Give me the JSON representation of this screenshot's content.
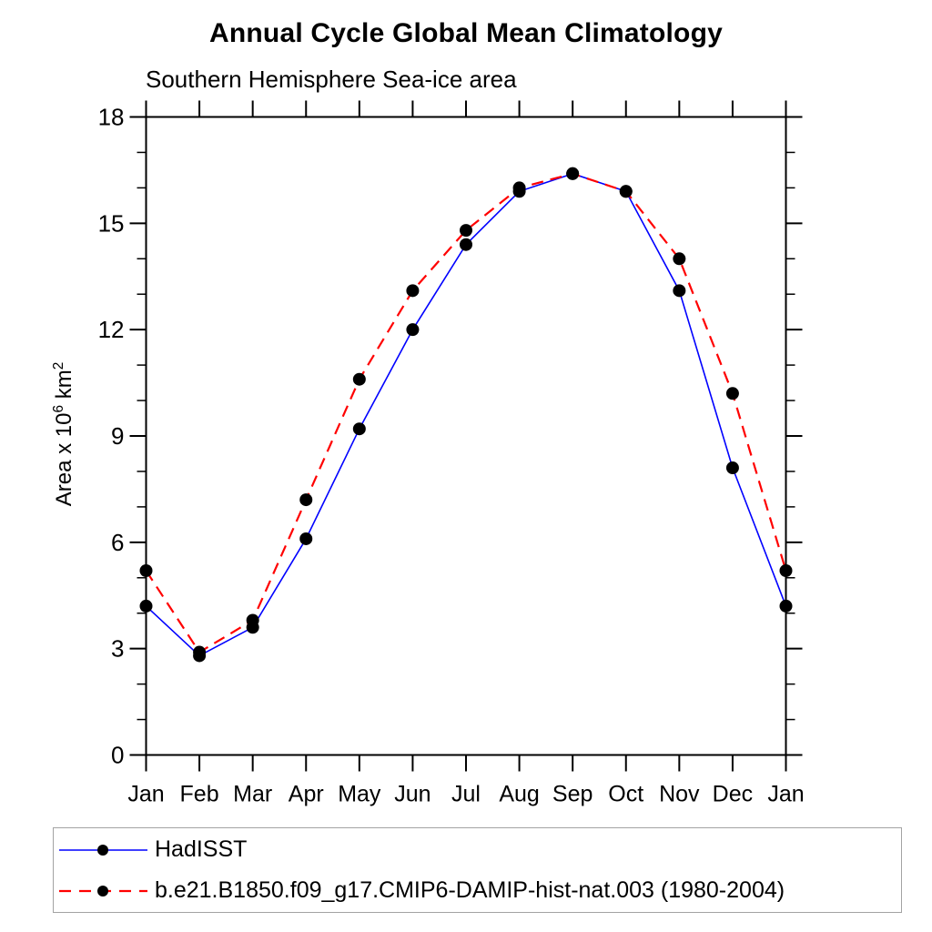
{
  "title": "Annual Cycle Global Mean Climatology",
  "subtitle": "Southern Hemisphere Sea-ice area",
  "y_axis": {
    "label": "Area x 10⁶ km²",
    "label_parts": [
      "Area x 10",
      "6",
      " km",
      "2"
    ],
    "ticks": [
      0,
      3,
      6,
      9,
      12,
      15,
      18
    ],
    "minor_step": 1,
    "range": [
      0,
      18
    ]
  },
  "x_axis": {
    "labels": [
      "Jan",
      "Feb",
      "Mar",
      "Apr",
      "May",
      "Jun",
      "Jul",
      "Aug",
      "Sep",
      "Oct",
      "Nov",
      "Dec",
      "Jan"
    ]
  },
  "legend": {
    "position": "bottom",
    "items": [
      {
        "label": "HadISST",
        "color": "#0000ff",
        "line_style": "solid",
        "marker": "filled-circle",
        "marker_color": "#000000"
      },
      {
        "label": "b.e21.B1850.f09_g17.CMIP6-DAMIP-hist-nat.003 (1980-2004)",
        "color": "#ff0000",
        "line_style": "dashed",
        "marker": "filled-circle",
        "marker_color": "#000000"
      }
    ]
  },
  "chart_data": {
    "type": "line",
    "title": "Annual Cycle Global Mean Climatology",
    "subtitle": "Southern Hemisphere Sea-ice area",
    "xlabel": "",
    "ylabel": "Area x 10⁶ km²",
    "x": [
      "Jan",
      "Feb",
      "Mar",
      "Apr",
      "May",
      "Jun",
      "Jul",
      "Aug",
      "Sep",
      "Oct",
      "Nov",
      "Dec",
      "Jan"
    ],
    "ylim": [
      0,
      18
    ],
    "yticks": [
      0,
      3,
      6,
      9,
      12,
      15,
      18
    ],
    "y_minor_step": 1,
    "grid": false,
    "legend_position": "bottom",
    "series": [
      {
        "name": "HadISST",
        "color": "#0000ff",
        "line_style": "solid",
        "marker": "filled-circle",
        "marker_color": "#000000",
        "values": [
          4.2,
          2.8,
          3.6,
          6.1,
          9.2,
          12.0,
          14.4,
          15.9,
          16.4,
          15.9,
          13.1,
          8.1,
          4.2
        ]
      },
      {
        "name": "b.e21.B1850.f09_g17.CMIP6-DAMIP-hist-nat.003 (1980-2004)",
        "color": "#ff0000",
        "line_style": "dashed",
        "marker": "filled-circle",
        "marker_color": "#000000",
        "values": [
          5.2,
          2.9,
          3.8,
          7.2,
          10.6,
          13.1,
          14.8,
          16.0,
          16.4,
          15.9,
          14.0,
          10.2,
          5.2
        ]
      }
    ]
  }
}
